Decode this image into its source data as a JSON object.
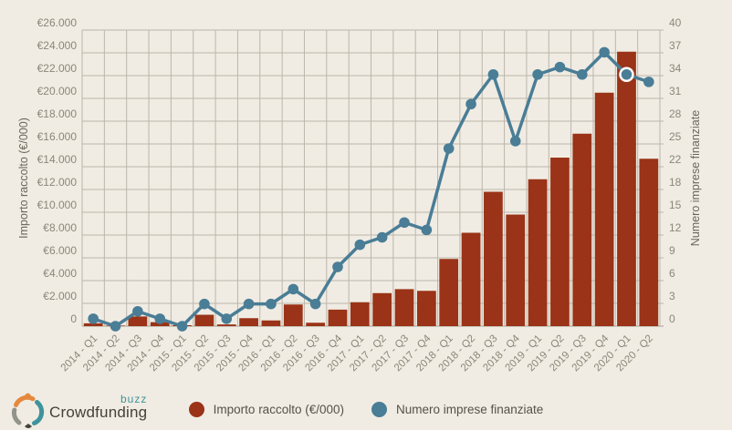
{
  "colors": {
    "background": "#f0ece3",
    "bar": "#9a3317",
    "line": "#4a7d96",
    "grid": "#bcb6ab",
    "baseline": "#a49e92",
    "tick_text": "#8c8679",
    "axis_title": "#6b665c",
    "legend_text": "#55514a",
    "highlight_ring": "#ffffff",
    "logo_orange": "#e5893f",
    "logo_teal": "#3f939c",
    "logo_gray": "#92948c"
  },
  "chart_data": {
    "type": "bar",
    "categories": [
      "2014 - Q1",
      "2014 - Q2",
      "2014 - Q3",
      "2014 - Q4",
      "2015 - Q1",
      "2015 - Q2",
      "2015 - Q3",
      "2015 - Q4",
      "2016 - Q1",
      "2016 - Q2",
      "2016 - Q3",
      "2016 - Q4",
      "2017 - Q1",
      "2017 - Q2",
      "2017 - Q3",
      "2017 - Q4",
      "2018 - Q1",
      "2018 - Q2",
      "2018 - Q3",
      "2018 - Q4",
      "2019 - Q1",
      "2019 - Q2",
      "2019 - Q3",
      "2019 - Q4",
      "2020 - Q1",
      "2020 - Q2"
    ],
    "series": [
      {
        "name": "Importo raccolto (€/000)",
        "type": "bar",
        "axis": "left",
        "values": [
          250,
          50,
          850,
          350,
          80,
          1000,
          150,
          700,
          500,
          1900,
          300,
          1450,
          2100,
          2900,
          3250,
          3100,
          5900,
          8200,
          11800,
          9800,
          12900,
          14800,
          16900,
          20500,
          24100,
          14700
        ]
      },
      {
        "name": "Numero imprese finanziate",
        "type": "line",
        "axis": "right",
        "values": [
          1,
          0,
          2,
          1,
          0,
          3,
          1,
          3,
          3,
          5,
          3,
          8,
          11,
          12,
          14,
          13,
          24,
          30,
          34,
          25,
          34,
          35,
          34,
          37,
          34,
          33
        ],
        "highlighted_index": 24
      }
    ],
    "left_axis": {
      "title": "Importo raccolto (€/000)",
      "min": 0,
      "max": 26000,
      "tick_labels_top_to_bottom": [
        "€26.000",
        "€24.000",
        "€22.000",
        "€20.000",
        "€18.000",
        "€16.000",
        "€14.000",
        "€12.000",
        "€10.000",
        "€8.000",
        "€6.000",
        "€4.000",
        "€2.000",
        "0"
      ]
    },
    "right_axis": {
      "title": "Numero imprese finanziate",
      "min": 0,
      "max": 40,
      "tick_labels_top_to_bottom": [
        "40",
        "37",
        "34",
        "31",
        "28",
        "25",
        "22",
        "18",
        "15",
        "12",
        "9",
        "6",
        "3",
        "0"
      ]
    },
    "grid": true,
    "legend_position": "bottom"
  },
  "legend": {
    "items": [
      {
        "label": "Importo raccolto (€/000)",
        "color": "#9a3317"
      },
      {
        "label": "Numero imprese finanziate",
        "color": "#4a7d96"
      }
    ]
  },
  "footer": {
    "logo_text": "Crowdfunding",
    "logo_sup": "buzz"
  }
}
